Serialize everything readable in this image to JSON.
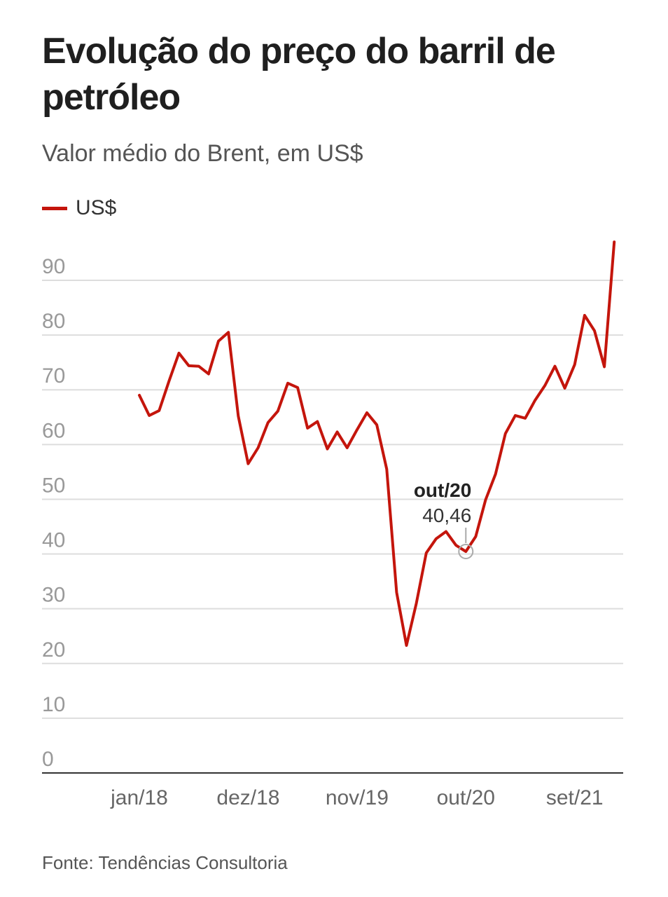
{
  "title": "Evolução do preço do barril de petróleo",
  "subtitle": "Valor médio do Brent, em US$",
  "source": "Fonte: Tendências Consultoria",
  "colors": {
    "line": "#c4150c",
    "grid": "#dddddd",
    "axis": "#333333",
    "marker": "#aaaaaa"
  },
  "chart_data": {
    "type": "line",
    "legend": {
      "position": "top-left",
      "entries": [
        "US$"
      ]
    },
    "grid": true,
    "ylim": [
      0,
      100
    ],
    "yticks": [
      0,
      10,
      20,
      30,
      40,
      50,
      60,
      70,
      80,
      90
    ],
    "xticks": [
      {
        "label": "jan/18",
        "index": 0
      },
      {
        "label": "dez/18",
        "index": 11
      },
      {
        "label": "nov/19",
        "index": 22
      },
      {
        "label": "out/20",
        "index": 33
      },
      {
        "label": "set/21",
        "index": 44
      }
    ],
    "series": [
      {
        "name": "US$",
        "values": [
          69.0,
          65.3,
          66.2,
          71.6,
          76.7,
          74.4,
          74.3,
          72.9,
          78.9,
          80.5,
          65.2,
          56.5,
          59.4,
          64.0,
          66.1,
          71.2,
          70.4,
          63.0,
          64.2,
          59.2,
          62.3,
          59.4,
          62.7,
          65.8,
          63.6,
          55.5,
          33.0,
          23.3,
          31.0,
          40.2,
          42.8,
          44.1,
          41.6,
          40.46,
          43.2,
          49.9,
          54.6,
          62.0,
          65.3,
          64.8,
          68.1,
          70.8,
          74.3,
          70.3,
          74.6,
          83.6,
          80.8,
          74.2,
          97.0
        ]
      }
    ],
    "annotations": [
      {
        "index": 33,
        "title": "out/20",
        "value": "40,46"
      }
    ]
  }
}
